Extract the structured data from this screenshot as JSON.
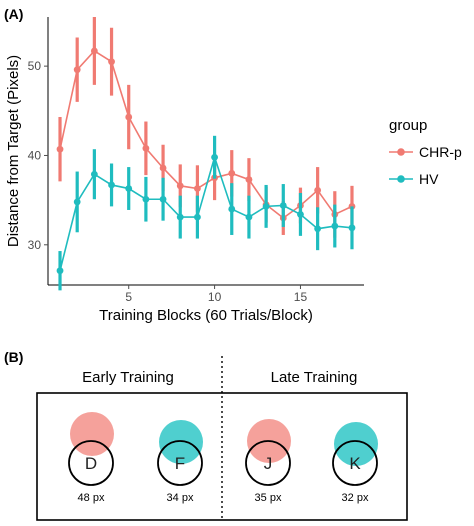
{
  "panel_a": {
    "label": "(A)"
  },
  "panel_b": {
    "label": "(B)",
    "sections": [
      {
        "heading": "Early Training",
        "targets": [
          {
            "letter": "D",
            "value_label": "48 px"
          },
          {
            "letter": "F",
            "value_label": "34 px"
          }
        ]
      },
      {
        "heading": "Late Training",
        "targets": [
          {
            "letter": "J",
            "value_label": "35 px"
          },
          {
            "letter": "K",
            "value_label": "32 px"
          }
        ]
      }
    ]
  },
  "colors": {
    "CHR-p": "#f07a72",
    "HV": "#1fbcbf",
    "red_fill": "#f5a19b",
    "teal_fill": "#4fcfcf",
    "gridline": "#ebebeb",
    "tick": "#4d4d4d"
  },
  "chart_data": {
    "type": "line",
    "title": "",
    "xlabel": "Training Blocks (60 Trials/Block)",
    "ylabel": "Distance from Target (Pixels)",
    "xlim": [
      0.3,
      18.7
    ],
    "ylim": [
      25.5,
      55.5
    ],
    "x_ticks": [
      5,
      10,
      15
    ],
    "y_ticks": [
      30,
      40,
      50
    ],
    "grid": false,
    "legend": {
      "title": "group",
      "placement": "right"
    },
    "x": [
      1,
      2,
      3,
      4,
      5,
      6,
      7,
      8,
      9,
      10,
      11,
      12,
      13,
      14,
      15,
      16,
      17,
      18
    ],
    "series": [
      {
        "name": "CHR-p",
        "values": [
          40.7,
          49.6,
          51.7,
          50.5,
          44.3,
          40.8,
          38.6,
          36.6,
          36.3,
          37.5,
          38.0,
          37.3,
          34.5,
          33.0,
          34.4,
          36.1,
          33.4,
          34.3
        ],
        "err": [
          3.6,
          3.6,
          3.8,
          3.8,
          3.6,
          3.0,
          2.6,
          2.4,
          2.6,
          2.5,
          2.6,
          2.4,
          2.0,
          1.9,
          2.0,
          2.6,
          2.6,
          2.3
        ]
      },
      {
        "name": "HV",
        "values": [
          27.1,
          34.8,
          37.9,
          36.7,
          36.3,
          35.1,
          35.1,
          33.1,
          33.1,
          39.8,
          34.0,
          33.1,
          34.3,
          34.4,
          33.4,
          31.8,
          32.1,
          31.9
        ],
        "err": [
          2.2,
          3.4,
          2.8,
          2.4,
          2.4,
          2.5,
          2.4,
          2.4,
          2.4,
          2.4,
          2.9,
          2.4,
          2.4,
          2.4,
          2.4,
          2.4,
          2.4,
          2.4
        ]
      }
    ]
  }
}
